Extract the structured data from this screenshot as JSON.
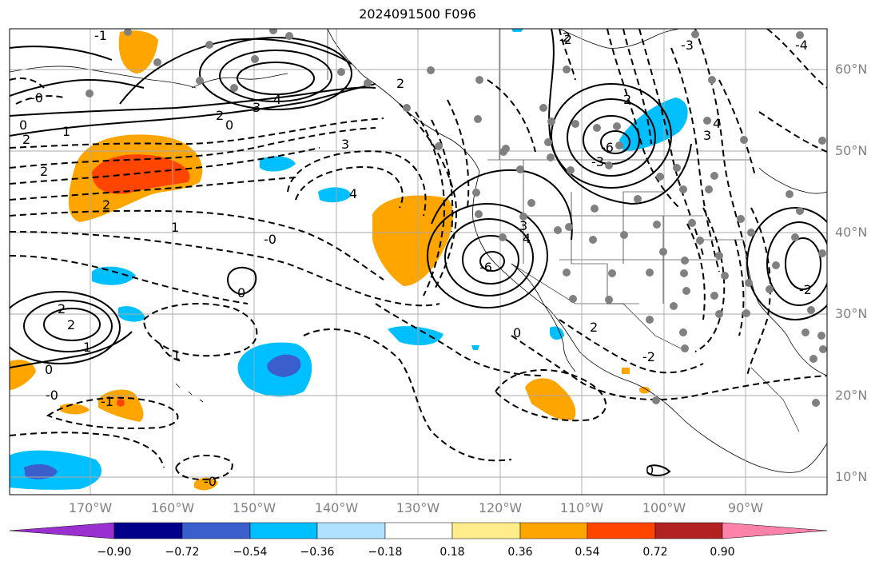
{
  "title": "2024091500 F096",
  "lon_labels": [
    "170°W",
    "160°W",
    "150°W",
    "140°W",
    "130°W",
    "120°W",
    "110°W",
    "100°W",
    "90°W"
  ],
  "lat_labels": [
    "60°N",
    "50°N",
    "40°N",
    "30°N",
    "20°N",
    "10°N"
  ],
  "contour_labels": [
    "0",
    "1",
    "2",
    "3",
    "4",
    "2",
    "0",
    "3",
    "4",
    "2",
    "1",
    "2",
    "3",
    "2",
    "-3",
    "-4",
    "-1",
    "-2",
    "-0",
    "0",
    "2",
    "2",
    "1",
    "0",
    "-0",
    "-1",
    "-0",
    "-0",
    "3",
    "4",
    "-6",
    "0",
    "-6",
    "-3",
    "2",
    "-2",
    "-2",
    "0",
    "2",
    "4",
    "2",
    "-1"
  ],
  "colorbar": {
    "ticks": [
      "−0.90",
      "−0.72",
      "−0.54",
      "−0.36",
      "−0.18",
      "0.18",
      "0.36",
      "0.54",
      "0.72",
      "0.90"
    ],
    "colors": [
      "#9b30d0",
      "#00008b",
      "#3a5fcd",
      "#00bfff",
      "#b0e2ff",
      "#ffffff",
      "#ffec8b",
      "#ffa500",
      "#ff4500",
      "#b22222",
      "#ff82ab"
    ]
  }
}
